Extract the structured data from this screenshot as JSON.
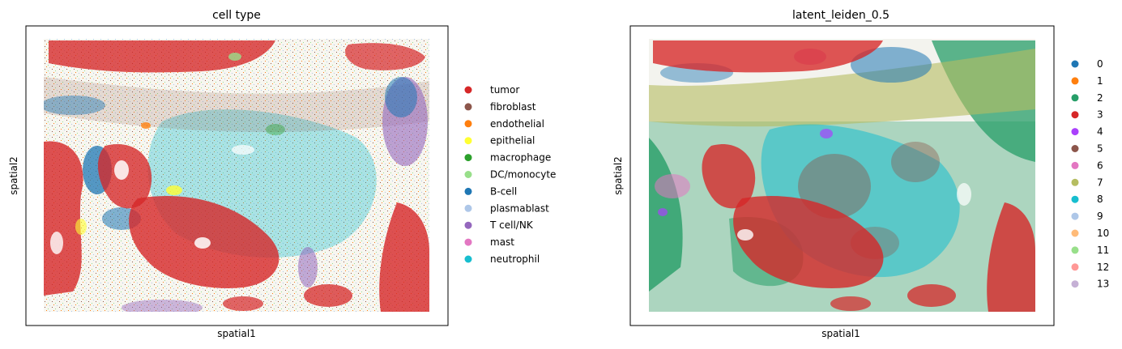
{
  "chart_data": [
    {
      "type": "scatter",
      "title": "cell type",
      "xlabel": "spatial1",
      "ylabel": "spatial2",
      "grid": false,
      "ticks": false,
      "legend": "right-outside",
      "series": [
        {
          "name": "tumor",
          "color": "#d62728"
        },
        {
          "name": "fibroblast",
          "color": "#8c564b"
        },
        {
          "name": "endothelial",
          "color": "#ff7f0e"
        },
        {
          "name": "epithelial",
          "color": "#ffff33"
        },
        {
          "name": "macrophage",
          "color": "#2ca02c"
        },
        {
          "name": "DC/monocyte",
          "color": "#98df8a"
        },
        {
          "name": "B-cell",
          "color": "#1f77b4"
        },
        {
          "name": "plasmablast",
          "color": "#aec7e8"
        },
        {
          "name": "T cell/NK",
          "color": "#9467bd"
        },
        {
          "name": "mast",
          "color": "#e377c2"
        },
        {
          "name": "neutrophil",
          "color": "#17becf"
        }
      ]
    },
    {
      "type": "scatter",
      "title": "latent_leiden_0.5",
      "xlabel": "spatial1",
      "ylabel": "spatial2",
      "grid": false,
      "ticks": false,
      "legend": "right-outside",
      "series": [
        {
          "name": "0",
          "color": "#1f77b4"
        },
        {
          "name": "1",
          "color": "#ff7f0e"
        },
        {
          "name": "2",
          "color": "#279e68"
        },
        {
          "name": "3",
          "color": "#d62728"
        },
        {
          "name": "4",
          "color": "#aa40fc"
        },
        {
          "name": "5",
          "color": "#8c564b"
        },
        {
          "name": "6",
          "color": "#e377c2"
        },
        {
          "name": "7",
          "color": "#b5bd61"
        },
        {
          "name": "8",
          "color": "#17becf"
        },
        {
          "name": "9",
          "color": "#aec7e8"
        },
        {
          "name": "10",
          "color": "#ffbb78"
        },
        {
          "name": "11",
          "color": "#98df8a"
        },
        {
          "name": "12",
          "color": "#ff9896"
        },
        {
          "name": "13",
          "color": "#c5b0d5"
        }
      ]
    }
  ]
}
